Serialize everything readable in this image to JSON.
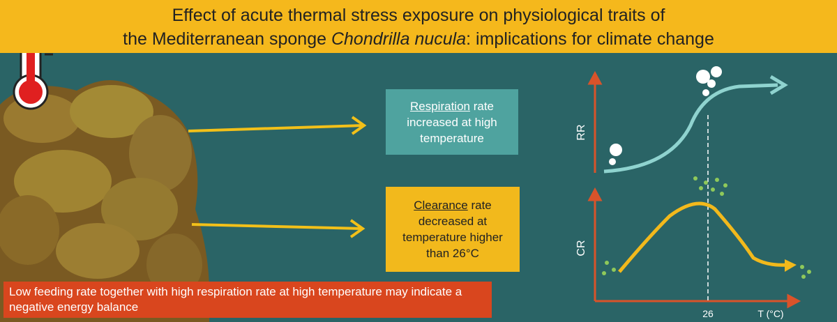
{
  "title": {
    "line1": "Effect of acute thermal stress exposure on physiological traits of",
    "line2_start": "the Mediterranean sponge ",
    "species": "Chondrilla nucula",
    "line2_end": ": implications for climate change"
  },
  "respiration_box": {
    "keyword": "Respiration",
    "text": " rate increased at high temperature"
  },
  "clearance_box": {
    "keyword": "Clearance",
    "text": " rate decreased at temperature higher than 26°C"
  },
  "graph": {
    "top_axis_label": "RR",
    "bottom_axis_label": "CR",
    "threshold_label": "26",
    "x_axis_label": "T (°C)"
  },
  "conclusion": "Low feeding rate together with high respiration rate at high temperature may indicate a negative energy balance"
}
